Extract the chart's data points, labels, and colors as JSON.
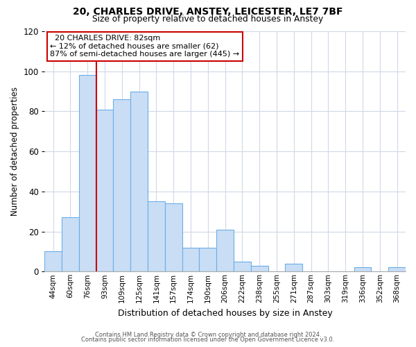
{
  "title1": "20, CHARLES DRIVE, ANSTEY, LEICESTER, LE7 7BF",
  "title2": "Size of property relative to detached houses in Anstey",
  "xlabel": "Distribution of detached houses by size in Anstey",
  "ylabel": "Number of detached properties",
  "bin_labels": [
    "44sqm",
    "60sqm",
    "76sqm",
    "93sqm",
    "109sqm",
    "125sqm",
    "141sqm",
    "157sqm",
    "174sqm",
    "190sqm",
    "206sqm",
    "222sqm",
    "238sqm",
    "255sqm",
    "271sqm",
    "287sqm",
    "303sqm",
    "319sqm",
    "336sqm",
    "352sqm",
    "368sqm"
  ],
  "bar_heights": [
    10,
    27,
    98,
    81,
    86,
    90,
    35,
    34,
    12,
    12,
    21,
    5,
    3,
    0,
    4,
    0,
    0,
    0,
    2,
    0,
    2
  ],
  "bar_color": "#c9ddf5",
  "bar_edge_color": "#6aaee8",
  "vline_x_index": 2.5,
  "vline_color": "#cc0000",
  "ylim": [
    0,
    120
  ],
  "yticks": [
    0,
    20,
    40,
    60,
    80,
    100,
    120
  ],
  "annotation_title": "20 CHARLES DRIVE: 82sqm",
  "annotation_line1": "← 12% of detached houses are smaller (62)",
  "annotation_line2": "87% of semi-detached houses are larger (445) →",
  "annotation_box_color": "#ffffff",
  "annotation_box_edge": "#cc0000",
  "footer1": "Contains HM Land Registry data © Crown copyright and database right 2024.",
  "footer2": "Contains public sector information licensed under the Open Government Licence v3.0.",
  "background_color": "#ffffff",
  "grid_color": "#d0d8e8"
}
